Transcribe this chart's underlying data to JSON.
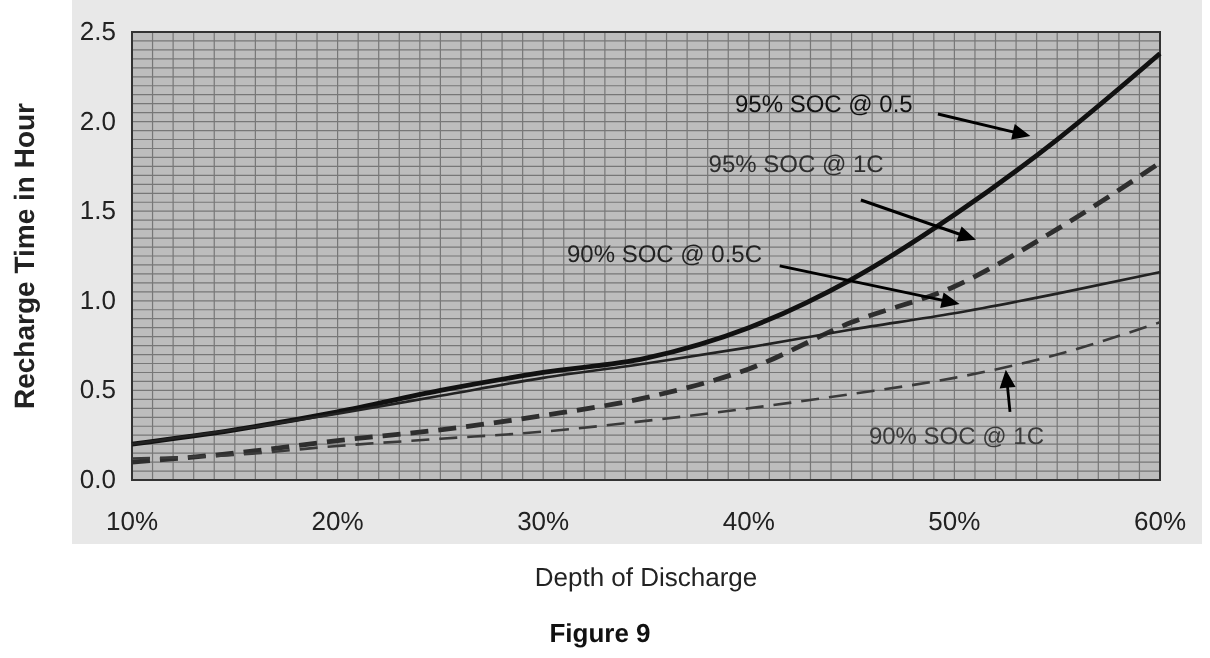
{
  "chart_data": {
    "type": "line",
    "title": "Figure 9",
    "xlabel": "Depth of Discharge",
    "ylabel": "Recharge Time in Hour",
    "x": [
      10,
      15,
      20,
      25,
      30,
      35,
      40,
      45,
      50,
      55,
      60
    ],
    "xlim": [
      10,
      60
    ],
    "xticks": [
      {
        "value": 10,
        "label": "10%"
      },
      {
        "value": 20,
        "label": "20%"
      },
      {
        "value": 30,
        "label": "30%"
      },
      {
        "value": 40,
        "label": "40%"
      },
      {
        "value": 50,
        "label": "50%"
      },
      {
        "value": 60,
        "label": "60%"
      }
    ],
    "ylim": [
      0,
      2.5
    ],
    "yticks": [
      {
        "value": 0,
        "label": "0.0"
      },
      {
        "value": 0.5,
        "label": "0.5"
      },
      {
        "value": 1,
        "label": "1.0"
      },
      {
        "value": 1.5,
        "label": "1.5"
      },
      {
        "value": 2,
        "label": "2.0"
      },
      {
        "value": 2.5,
        "label": "2.5"
      }
    ],
    "grid": true,
    "marker": "none",
    "series": [
      {
        "name": "95% SOC @ 0.5",
        "color": "#111111",
        "line_style": "solid",
        "values": [
          0.2,
          0.28,
          0.38,
          0.5,
          0.6,
          0.68,
          0.85,
          1.12,
          1.48,
          1.9,
          2.38
        ]
      },
      {
        "name": "95% SOC @ 1C",
        "color": "#2e2e2e",
        "line_style": "dashed",
        "values": [
          0.1,
          0.15,
          0.22,
          0.28,
          0.36,
          0.46,
          0.62,
          0.88,
          1.08,
          1.4,
          1.77
        ]
      },
      {
        "name": "90% SOC @ 0.5C",
        "color": "#222222",
        "line_style": "solid",
        "values": [
          0.2,
          0.28,
          0.37,
          0.47,
          0.57,
          0.65,
          0.74,
          0.84,
          0.93,
          1.04,
          1.16
        ]
      },
      {
        "name": "90% SOC @ 1C",
        "color": "#3a3a3a",
        "line_style": "dashed",
        "values": [
          0.12,
          0.14,
          0.19,
          0.23,
          0.27,
          0.33,
          0.4,
          0.48,
          0.57,
          0.7,
          0.88
        ]
      }
    ]
  }
}
